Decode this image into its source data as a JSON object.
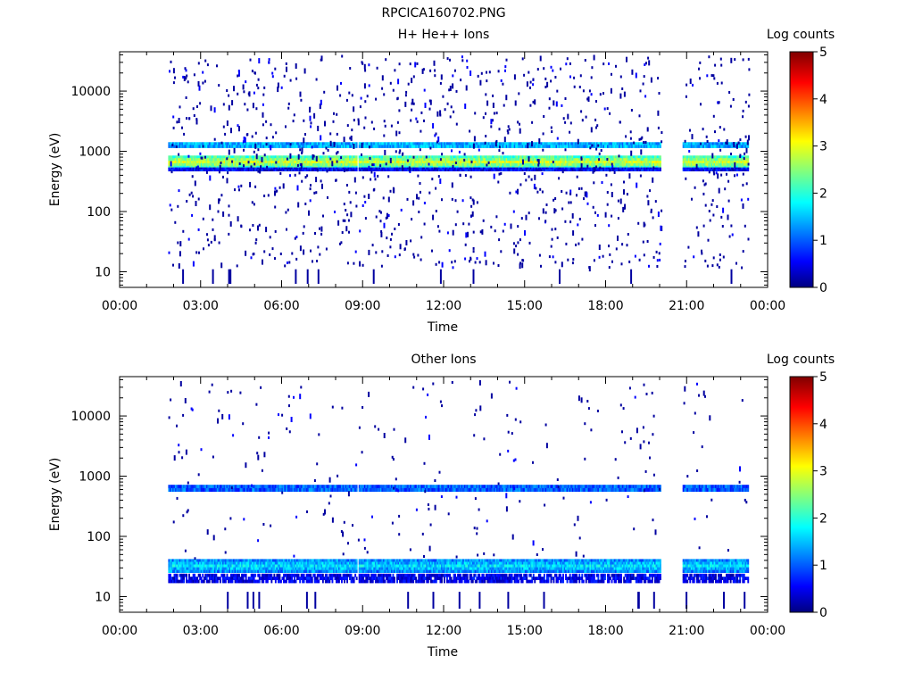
{
  "figure_title": "RPCICA160702.PNG",
  "chart_data": [
    {
      "type": "heatmap",
      "title": "H+ He++ Ions",
      "xlabel": "Time",
      "ylabel": "Energy (eV)",
      "y_scale": "log",
      "ylim": [
        5.5,
        45000
      ],
      "xlim": [
        0,
        24
      ],
      "x_ticks": [
        "00:00",
        "03:00",
        "06:00",
        "09:00",
        "12:00",
        "15:00",
        "18:00",
        "21:00",
        "00:00"
      ],
      "y_ticks": [
        "10",
        "100",
        "1000",
        "10000"
      ],
      "y_tick_values": [
        10,
        100,
        1000,
        10000
      ],
      "colorbar": {
        "label": "Log counts",
        "range": [
          0,
          5
        ],
        "ticks": [
          "0",
          "1",
          "2",
          "3",
          "4",
          "5"
        ]
      },
      "data_gaps": [
        [
          8.75,
          8.8
        ],
        [
          20.05,
          20.85
        ]
      ],
      "coverage": [
        1.8,
        23.3
      ],
      "bands": [
        {
          "energy": [
            520,
            850
          ],
          "level": 2.6
        },
        {
          "energy": [
            1150,
            1420
          ],
          "level": 1.5
        },
        {
          "energy": [
            470,
            540
          ],
          "level": 0.6
        }
      ],
      "background": "sparse single counts (~0.3 log counts) between 10 eV and 40000 eV"
    },
    {
      "type": "heatmap",
      "title": "Other Ions",
      "xlabel": "Time",
      "ylabel": "Energy (eV)",
      "y_scale": "log",
      "ylim": [
        5.5,
        45000
      ],
      "xlim": [
        0,
        24
      ],
      "x_ticks": [
        "00:00",
        "03:00",
        "06:00",
        "09:00",
        "12:00",
        "15:00",
        "18:00",
        "21:00",
        "00:00"
      ],
      "y_ticks": [
        "10",
        "100",
        "1000",
        "10000"
      ],
      "y_tick_values": [
        10,
        100,
        1000,
        10000
      ],
      "colorbar": {
        "label": "Log counts",
        "range": [
          0,
          5
        ],
        "ticks": [
          "0",
          "1",
          "2",
          "3",
          "4",
          "5"
        ]
      },
      "data_gaps": [
        [
          8.75,
          8.8
        ],
        [
          20.05,
          20.85
        ]
      ],
      "coverage": [
        1.8,
        23.3
      ],
      "bands": [
        {
          "energy": [
            560,
            720
          ],
          "level": 1.1
        },
        {
          "energy": [
            25,
            42
          ],
          "level": 1.5
        },
        {
          "energy": [
            17,
            24
          ],
          "level": 0.4
        }
      ],
      "background": "very sparse counts between 30 eV and 40000 eV"
    }
  ]
}
